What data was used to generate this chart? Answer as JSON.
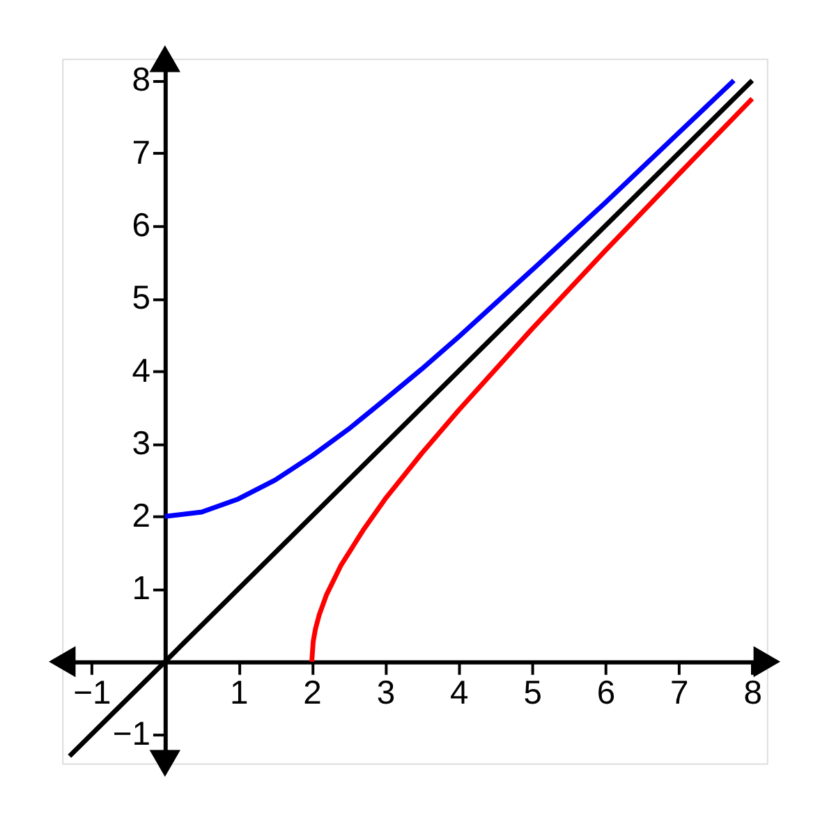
{
  "chart_data": {
    "type": "line",
    "xlim": [
      -1.4,
      8.2
    ],
    "ylim": [
      -1.4,
      8.3
    ],
    "xticks": [
      -1,
      1,
      2,
      3,
      4,
      5,
      6,
      7,
      8
    ],
    "yticks": [
      -1,
      1,
      2,
      3,
      4,
      5,
      6,
      7,
      8
    ],
    "grid": false,
    "series": [
      {
        "color": "#0000ff",
        "x": [
          0,
          0.5,
          1,
          1.5,
          2,
          2.5,
          3,
          3.5,
          4,
          5,
          6,
          7,
          7.75
        ],
        "values": [
          2,
          2.06,
          2.24,
          2.5,
          2.83,
          3.2,
          3.61,
          4.03,
          4.47,
          5.39,
          6.32,
          7.28,
          8
        ]
      },
      {
        "color": "#ff0000",
        "x": [
          2,
          2.02,
          2.05,
          2.1,
          2.2,
          2.4,
          2.7,
          3,
          3.5,
          4,
          5,
          6,
          7,
          8
        ],
        "values": [
          0,
          0.28,
          0.45,
          0.64,
          0.92,
          1.33,
          1.81,
          2.24,
          2.87,
          3.46,
          4.58,
          5.66,
          6.71,
          7.75
        ]
      },
      {
        "color": "#000000",
        "x": [
          -1.3,
          8
        ],
        "values": [
          -1.3,
          8
        ]
      }
    ]
  }
}
